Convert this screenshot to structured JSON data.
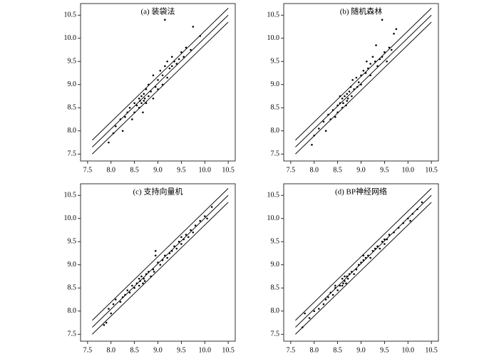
{
  "chart_data": [
    {
      "type": "scatter",
      "title": "(a) 装袋法",
      "xlim": [
        7.35,
        10.65
      ],
      "ylim": [
        7.35,
        10.75
      ],
      "xticks": [
        7.5,
        {
          "value": 8,
          "label": "8.0"
        },
        8.5,
        {
          "value": 9,
          "label": "9.0"
        },
        9.5,
        {
          "value": 10,
          "label": "10.0"
        },
        10.5
      ],
      "yticks": [
        7.5,
        {
          "value": 8,
          "label": "8.0"
        },
        8.5,
        {
          "value": 9,
          "label": "9.0"
        },
        9.5,
        {
          "value": 10,
          "label": "10.0"
        },
        10.5
      ],
      "lines": [
        {
          "color": "#000000",
          "x": [
            7.6,
            10.5
          ],
          "values": [
            7.8,
            10.65
          ]
        },
        {
          "color": "#000000",
          "x": [
            7.6,
            10.5
          ],
          "values": [
            7.65,
            10.5
          ]
        },
        {
          "color": "#000000",
          "x": [
            7.6,
            10.5
          ],
          "values": [
            7.5,
            10.35
          ]
        }
      ],
      "series": [
        {
          "color": "#000000",
          "x": [
            7.95,
            8.05,
            8.1,
            8.2,
            8.25,
            8.3,
            8.35,
            8.4,
            8.45,
            8.5,
            8.5,
            8.55,
            8.6,
            8.6,
            8.62,
            8.65,
            8.65,
            8.68,
            8.7,
            8.7,
            8.72,
            8.75,
            8.75,
            8.8,
            8.8,
            8.85,
            8.9,
            8.9,
            8.95,
            9.0,
            9.0,
            9.05,
            9.1,
            9.1,
            9.15,
            9.2,
            9.2,
            9.25,
            9.3,
            9.3,
            9.35,
            9.4,
            9.45,
            9.5,
            9.55,
            9.6,
            9.7,
            9.75,
            9.9,
            9.15
          ],
          "values": [
            7.75,
            7.95,
            8.1,
            8.25,
            8.0,
            8.3,
            8.4,
            8.5,
            8.25,
            8.6,
            8.4,
            8.55,
            8.7,
            8.5,
            8.65,
            8.75,
            8.6,
            8.4,
            8.8,
            8.65,
            8.7,
            8.9,
            8.6,
            8.75,
            9.0,
            8.85,
            9.2,
            8.7,
            8.95,
            9.1,
            8.9,
            9.3,
            9.2,
            9.0,
            9.4,
            9.5,
            9.15,
            9.35,
            9.6,
            9.4,
            9.5,
            9.45,
            9.55,
            9.7,
            9.6,
            9.8,
            9.75,
            10.25,
            10.05,
            10.4
          ]
        }
      ]
    },
    {
      "type": "scatter",
      "title": "(b) 随机森林",
      "xlim": [
        7.35,
        10.65
      ],
      "ylim": [
        7.35,
        10.75
      ],
      "xticks": [
        7.5,
        {
          "value": 8,
          "label": "8.0"
        },
        8.5,
        {
          "value": 9,
          "label": "9.0"
        },
        9.5,
        {
          "value": 10,
          "label": "10.0"
        },
        10.5
      ],
      "yticks": [
        7.5,
        {
          "value": 8,
          "label": "8.0"
        },
        8.5,
        {
          "value": 9,
          "label": "9.0"
        },
        9.5,
        {
          "value": 10,
          "label": "10.0"
        },
        10.5
      ],
      "lines": [
        {
          "color": "#000000",
          "x": [
            7.6,
            10.5
          ],
          "values": [
            7.8,
            10.65
          ]
        },
        {
          "color": "#000000",
          "x": [
            7.6,
            10.5
          ],
          "values": [
            7.65,
            10.5
          ]
        },
        {
          "color": "#000000",
          "x": [
            7.6,
            10.5
          ],
          "values": [
            7.5,
            10.35
          ]
        }
      ],
      "series": [
        {
          "color": "#000000",
          "x": [
            7.95,
            8.0,
            8.1,
            8.2,
            8.25,
            8.3,
            8.35,
            8.4,
            8.45,
            8.5,
            8.5,
            8.55,
            8.6,
            8.6,
            8.62,
            8.65,
            8.68,
            8.7,
            8.7,
            8.72,
            8.75,
            8.78,
            8.8,
            8.82,
            8.85,
            8.9,
            8.92,
            8.95,
            9.0,
            9.0,
            9.05,
            9.1,
            9.12,
            9.15,
            9.2,
            9.2,
            9.25,
            9.3,
            9.32,
            9.35,
            9.4,
            9.45,
            9.5,
            9.55,
            9.6,
            9.65,
            9.7,
            9.75,
            9.45,
            8.55
          ],
          "values": [
            7.7,
            7.9,
            8.05,
            8.2,
            8.0,
            8.35,
            8.25,
            8.45,
            8.3,
            8.55,
            8.4,
            8.6,
            8.7,
            8.5,
            8.6,
            8.75,
            8.55,
            8.8,
            8.65,
            8.7,
            8.85,
            8.95,
            8.75,
            9.1,
            8.9,
            9.15,
            8.95,
            9.05,
            9.2,
            9.0,
            9.3,
            9.25,
            9.5,
            9.35,
            9.45,
            9.2,
            9.6,
            9.5,
            9.85,
            9.4,
            9.55,
            9.6,
            9.7,
            9.5,
            9.8,
            9.75,
            10.1,
            10.2,
            10.4,
            8.75
          ]
        }
      ]
    },
    {
      "type": "scatter",
      "title": "(c) 支持向量机",
      "xlim": [
        7.35,
        10.65
      ],
      "ylim": [
        7.35,
        10.75
      ],
      "xticks": [
        7.5,
        {
          "value": 8,
          "label": "8.0"
        },
        8.5,
        {
          "value": 9,
          "label": "9.0"
        },
        9.5,
        {
          "value": 10,
          "label": "10.0"
        },
        10.5
      ],
      "yticks": [
        7.5,
        {
          "value": 8,
          "label": "8.0"
        },
        8.5,
        {
          "value": 9,
          "label": "9.0"
        },
        9.5,
        {
          "value": 10,
          "label": "10.0"
        },
        10.5
      ],
      "lines": [
        {
          "color": "#000000",
          "x": [
            7.6,
            10.5
          ],
          "values": [
            7.8,
            10.65
          ]
        },
        {
          "color": "#000000",
          "x": [
            7.6,
            10.5
          ],
          "values": [
            7.65,
            10.5
          ]
        },
        {
          "color": "#000000",
          "x": [
            7.6,
            10.5
          ],
          "values": [
            7.5,
            10.35
          ]
        }
      ],
      "series": [
        {
          "color": "#000000",
          "x": [
            7.85,
            7.9,
            7.95,
            8.0,
            8.05,
            8.1,
            8.2,
            8.25,
            8.3,
            8.35,
            8.4,
            8.45,
            8.5,
            8.55,
            8.6,
            8.6,
            8.62,
            8.65,
            8.68,
            8.7,
            8.72,
            8.75,
            8.8,
            8.85,
            8.9,
            8.92,
            8.95,
            9.0,
            9.05,
            9.1,
            9.15,
            9.2,
            9.25,
            9.3,
            9.35,
            9.4,
            9.45,
            9.5,
            9.55,
            9.6,
            9.65,
            9.7,
            9.75,
            9.8,
            9.9,
            10.0,
            10.05,
            10.15,
            8.95,
            9.5
          ],
          "values": [
            7.7,
            7.75,
            8.05,
            7.95,
            8.15,
            8.25,
            8.2,
            8.3,
            8.35,
            8.45,
            8.4,
            8.55,
            8.5,
            8.6,
            8.7,
            8.55,
            8.65,
            8.75,
            8.6,
            8.7,
            8.65,
            8.8,
            8.85,
            8.75,
            8.9,
            8.85,
            9.2,
            9.05,
            9.0,
            9.1,
            9.2,
            9.15,
            9.25,
            9.3,
            9.4,
            9.35,
            9.5,
            9.45,
            9.55,
            9.65,
            9.6,
            9.75,
            9.7,
            9.85,
            9.95,
            10.05,
            10.0,
            10.25,
            9.3,
            9.6
          ]
        }
      ]
    },
    {
      "type": "scatter",
      "title": "(d) BP神经网络",
      "xlim": [
        7.35,
        10.65
      ],
      "ylim": [
        7.35,
        10.75
      ],
      "xticks": [
        7.5,
        {
          "value": 8,
          "label": "8.0"
        },
        8.5,
        {
          "value": 9,
          "label": "9.0"
        },
        9.5,
        {
          "value": 10,
          "label": "10.0"
        },
        10.5
      ],
      "yticks": [
        7.5,
        {
          "value": 8,
          "label": "8.0"
        },
        8.5,
        {
          "value": 9,
          "label": "9.0"
        },
        9.5,
        {
          "value": 10,
          "label": "10.0"
        },
        10.5
      ],
      "lines": [
        {
          "color": "#000000",
          "x": [
            7.6,
            10.5
          ],
          "values": [
            7.8,
            10.65
          ]
        },
        {
          "color": "#000000",
          "x": [
            7.6,
            10.5
          ],
          "values": [
            7.65,
            10.5
          ]
        },
        {
          "color": "#000000",
          "x": [
            7.6,
            10.5
          ],
          "values": [
            7.5,
            10.35
          ]
        }
      ],
      "series": [
        {
          "color": "#000000",
          "x": [
            7.75,
            7.8,
            7.9,
            8.0,
            8.1,
            8.2,
            8.25,
            8.3,
            8.35,
            8.4,
            8.45,
            8.5,
            8.55,
            8.6,
            8.6,
            8.62,
            8.65,
            8.68,
            8.7,
            8.72,
            8.75,
            8.8,
            8.85,
            8.9,
            8.95,
            9.0,
            9.05,
            9.1,
            9.15,
            9.2,
            9.25,
            9.3,
            9.35,
            9.4,
            9.45,
            9.5,
            9.55,
            9.6,
            9.7,
            9.8,
            9.9,
            10.0,
            10.05,
            10.1,
            10.2,
            10.3,
            8.65,
            9.05,
            9.5,
            8.45
          ],
          "values": [
            7.65,
            7.95,
            7.85,
            8.0,
            8.05,
            8.15,
            8.25,
            8.3,
            8.4,
            8.35,
            8.5,
            8.45,
            8.55,
            8.7,
            8.55,
            8.6,
            8.65,
            8.6,
            8.75,
            8.7,
            8.8,
            8.85,
            8.8,
            8.9,
            9.0,
            9.05,
            9.1,
            9.15,
            9.2,
            9.15,
            9.3,
            9.35,
            9.4,
            9.35,
            9.5,
            9.45,
            9.55,
            9.65,
            9.7,
            9.8,
            9.9,
            10.0,
            9.95,
            10.1,
            10.2,
            10.35,
            8.75,
            9.2,
            9.55,
            8.55
          ]
        }
      ]
    }
  ]
}
